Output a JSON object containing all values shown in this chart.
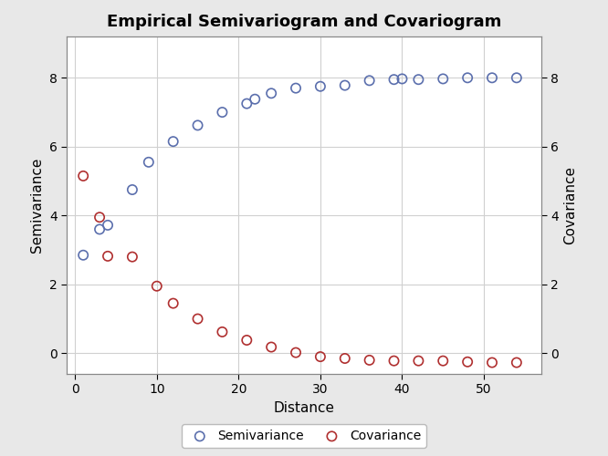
{
  "title": "Empirical Semivariogram and Covariogram",
  "xlabel": "Distance",
  "ylabel_left": "Semivariance",
  "ylabel_right": "Covariance",
  "semivariogram_x": [
    1,
    3,
    4,
    7,
    9,
    12,
    15,
    18,
    21,
    22,
    24,
    27,
    30,
    33,
    36,
    39,
    40,
    42,
    45,
    48,
    51,
    54
  ],
  "semivariogram_y": [
    2.85,
    3.6,
    3.72,
    4.75,
    5.55,
    6.15,
    6.62,
    7.0,
    7.25,
    7.38,
    7.55,
    7.7,
    7.75,
    7.78,
    7.92,
    7.95,
    7.97,
    7.95,
    7.97,
    8.0,
    8.0,
    8.0
  ],
  "covariogram_x": [
    1,
    3,
    4,
    7,
    10,
    12,
    15,
    18,
    21,
    24,
    27,
    30,
    33,
    36,
    39,
    42,
    45,
    48,
    51,
    54
  ],
  "covariogram_y": [
    5.15,
    3.95,
    2.82,
    2.8,
    1.95,
    1.45,
    1.0,
    0.62,
    0.38,
    0.18,
    0.02,
    -0.1,
    -0.15,
    -0.2,
    -0.22,
    -0.22,
    -0.22,
    -0.25,
    -0.27,
    -0.27
  ],
  "semi_color": "#5b6fad",
  "cov_color": "#b03030",
  "bg_color": "#E8E8E8",
  "plot_bg_color": "#FFFFFF",
  "ylim_left": [
    -0.6,
    9.2
  ],
  "ylim_right": [
    -0.6,
    9.2
  ],
  "xlim": [
    -1,
    57
  ],
  "xticks": [
    0,
    10,
    20,
    30,
    40,
    50
  ],
  "yticks_left": [
    0,
    2,
    4,
    6,
    8
  ],
  "yticks_right": [
    0,
    2,
    4,
    6,
    8
  ],
  "marker_size": 55,
  "marker_lw": 1.2,
  "title_fontsize": 13,
  "label_fontsize": 11,
  "tick_fontsize": 10,
  "legend_fontsize": 10,
  "grid_color": "#D0D0D0"
}
